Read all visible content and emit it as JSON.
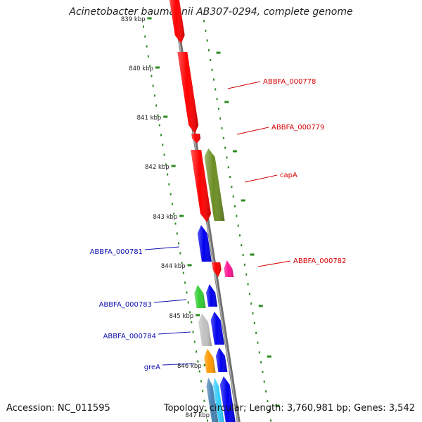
{
  "title": "Acinetobacter baumannii AB307-0294, complete genome",
  "footer": {
    "accession": "Accession: NC_011595",
    "stats": "Topology: circular; Length: 3,760,981 bp; Genes: 3,542"
  },
  "colors": {
    "backbone": "#8c8c8c",
    "tick": "#2a8a1f",
    "forward_label": "#d40000",
    "reverse_label": "#1010b0",
    "red": "#ff0000",
    "olive": "#6b8e23",
    "blue": "#0000ee",
    "magenta": "#ff1493",
    "green": "#33cc33",
    "gray": "#c0c0c0",
    "orange": "#ff9900",
    "steelblue": "#4682b4",
    "cyan": "#33ccff"
  },
  "scale": {
    "unit": "kbp",
    "ticks": [
      "839 kbp",
      "840 kbp",
      "841 kbp",
      "842 kbp",
      "843 kbp",
      "844 kbp",
      "845 kbp",
      "846 kbp",
      "847 kbp"
    ]
  },
  "genes": [
    {
      "label": "ABBFA_000778",
      "strand": "forward"
    },
    {
      "label": "ABBFA_000779",
      "strand": "forward"
    },
    {
      "label": "capA",
      "strand": "forward"
    },
    {
      "label": "ABBFA_000782",
      "strand": "forward"
    },
    {
      "label": "ABBFA_000781",
      "strand": "reverse"
    },
    {
      "label": "ABBFA_000783",
      "strand": "reverse"
    },
    {
      "label": "ABBFA_000784",
      "strand": "reverse"
    },
    {
      "label": "greA",
      "strand": "reverse"
    }
  ]
}
